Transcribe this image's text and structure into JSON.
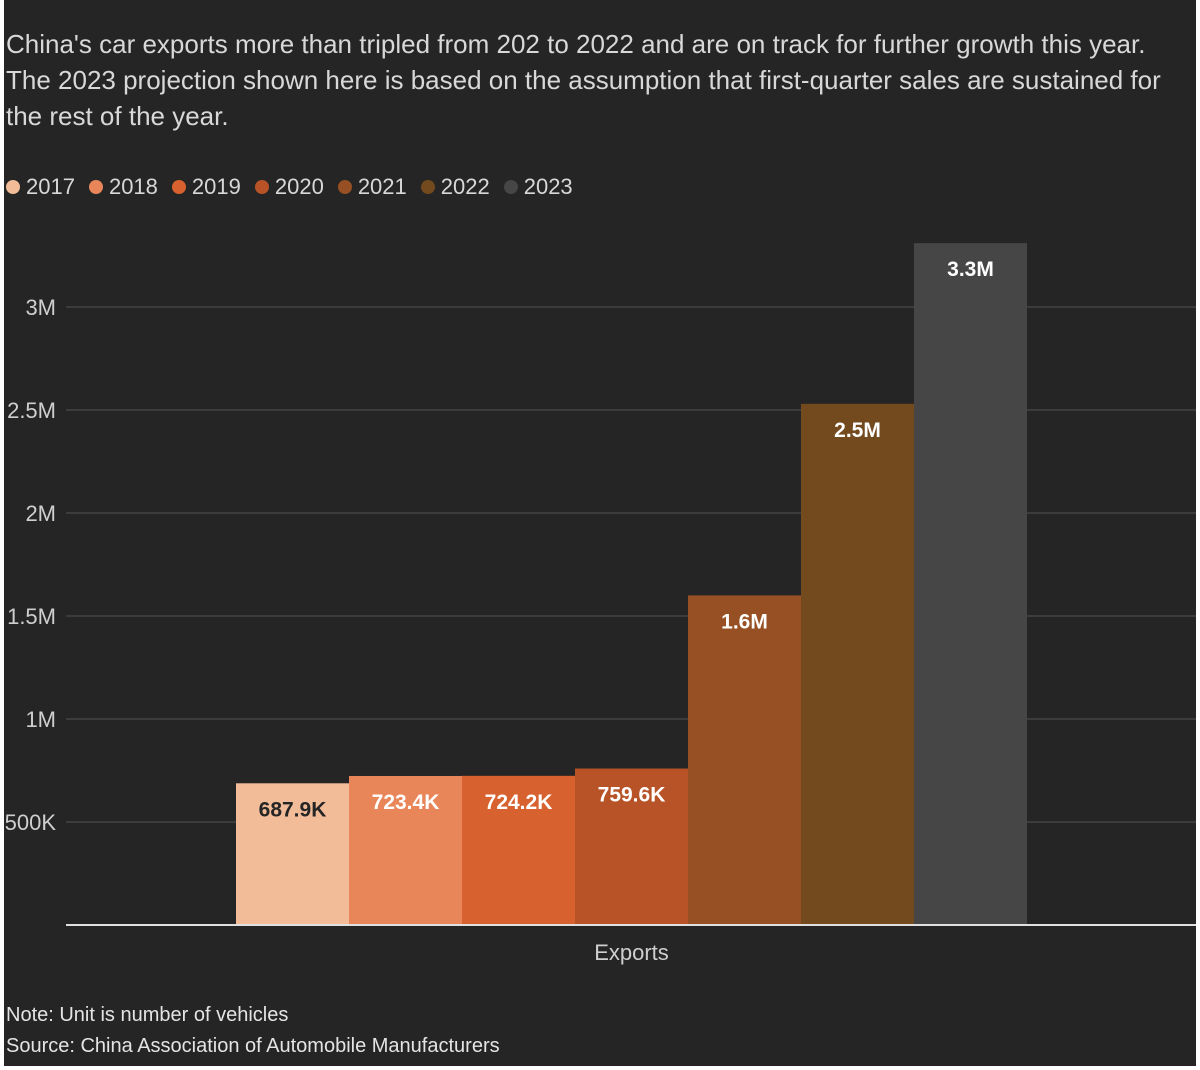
{
  "subtitle": "China's car exports more than tripled from 202 to 2022 and are on track for further growth this year. The 2023 projection shown here is based on the assumption that first-quarter sales are sustained for the rest of the year.",
  "note": "Note: Unit is number of vehicles",
  "source": "Source: China Association of Automobile Manufacturers",
  "colors": {
    "background": "#252525",
    "grid": "#4a4a4a",
    "axis": "#e0e0e0"
  },
  "chart_data": {
    "type": "bar",
    "categories": [
      "Exports"
    ],
    "xlabel": "Exports",
    "ylabel": "",
    "ylim": [
      0,
      3300000
    ],
    "yticks": [
      500000,
      1000000,
      1500000,
      2000000,
      2500000,
      3000000
    ],
    "ytick_labels": [
      "500K",
      "1M",
      "1.5M",
      "2M",
      "2.5M",
      "3M"
    ],
    "grid": true,
    "legend_position": "top-left",
    "series": [
      {
        "name": "2017",
        "value": 687900,
        "label": "687.9K",
        "color": "#f2bc99",
        "label_color": "#252525"
      },
      {
        "name": "2018",
        "value": 723400,
        "label": "723.4K",
        "color": "#e8865a",
        "label_color": "#ffffff"
      },
      {
        "name": "2019",
        "value": 724200,
        "label": "724.2K",
        "color": "#d8622f",
        "label_color": "#ffffff"
      },
      {
        "name": "2020",
        "value": 759600,
        "label": "759.6K",
        "color": "#b85227",
        "label_color": "#ffffff"
      },
      {
        "name": "2021",
        "value": 1600000,
        "label": "1.6M",
        "color": "#975024",
        "label_color": "#ffffff"
      },
      {
        "name": "2022",
        "value": 2530000,
        "label": "2.5M",
        "color": "#734a1e",
        "label_color": "#ffffff"
      },
      {
        "name": "2023",
        "value": 3310000,
        "label": "3.3M",
        "color": "#464646",
        "label_color": "#ffffff"
      }
    ]
  }
}
